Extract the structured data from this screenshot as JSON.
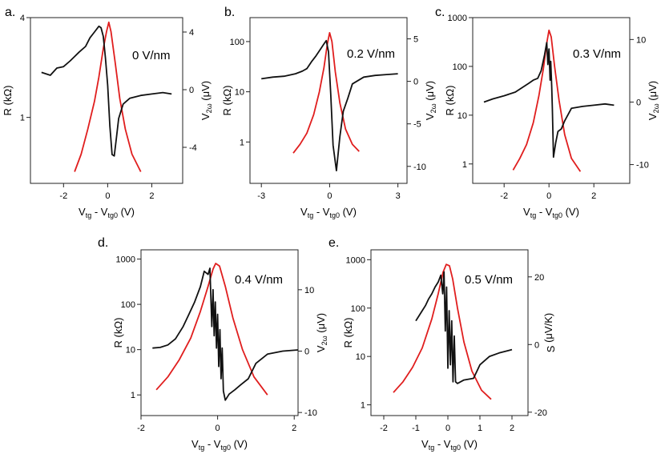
{
  "chart_data": [
    {
      "type": "line",
      "panel_label": "a.",
      "annotation": "0 V/nm",
      "xlabel": {
        "main": "V",
        "sub1": "tg",
        "mid": " - V",
        "sub2": "tg0",
        "unit": " (V)"
      },
      "ylabel_left": {
        "main": "R (kΩ)"
      },
      "ylabel_right": {
        "main": "V",
        "sub": "2ω",
        "unit": " (μV)"
      },
      "left_axis": {
        "scale": "log",
        "range": [
          0.4,
          4
        ],
        "ticks": [
          {
            "v": 1,
            "label": "1"
          },
          {
            "v": 4,
            "label": "4"
          }
        ]
      },
      "right_axis": {
        "scale": "linear",
        "range": [
          -6.5,
          5
        ],
        "ticks": [
          {
            "v": 4,
            "label": "4"
          },
          {
            "v": 0,
            "label": "0"
          },
          {
            "v": -4,
            "label": "-4"
          }
        ]
      },
      "x_axis": {
        "range": [
          -3.5,
          3.4
        ],
        "ticks": [
          {
            "v": -2,
            "label": "-2"
          },
          {
            "v": 0,
            "label": "0"
          },
          {
            "v": 2,
            "label": "2"
          }
        ]
      },
      "series": [
        {
          "name": "R",
          "color": "#e01e1e",
          "axis": "left",
          "x": [
            -1.5,
            -1.2,
            -0.9,
            -0.6,
            -0.4,
            -0.2,
            -0.05,
            0.05,
            0.15,
            0.35,
            0.55,
            0.8,
            1.1,
            1.5
          ],
          "values": [
            0.47,
            0.6,
            0.85,
            1.25,
            1.75,
            2.6,
            3.3,
            3.75,
            3.3,
            2.1,
            1.3,
            0.85,
            0.6,
            0.47
          ]
        },
        {
          "name": "V2w",
          "color": "#111111",
          "axis": "right",
          "x": [
            -3.0,
            -2.6,
            -2.3,
            -2.0,
            -1.7,
            -1.5,
            -1.3,
            -1.0,
            -0.8,
            -0.6,
            -0.4,
            -0.3,
            -0.2,
            -0.1,
            0.0,
            0.1,
            0.2,
            0.3,
            0.4,
            0.5,
            0.7,
            1.0,
            1.5,
            2.0,
            2.5,
            2.9
          ],
          "values": [
            1.2,
            1.0,
            1.5,
            1.6,
            2.0,
            2.3,
            2.6,
            3.0,
            3.6,
            4.0,
            4.4,
            4.3,
            3.7,
            2.2,
            0.3,
            -2.5,
            -4.5,
            -4.6,
            -3.3,
            -2.0,
            -1.0,
            -0.6,
            -0.4,
            -0.3,
            -0.2,
            -0.3
          ]
        }
      ]
    },
    {
      "type": "line",
      "panel_label": "b.",
      "annotation": "0.2 V/nm",
      "xlabel": {
        "main": "V",
        "sub1": "tg",
        "mid": " - V",
        "sub2": "tg0",
        "unit": " (V)"
      },
      "ylabel_left": {
        "main": "R (kΩ)"
      },
      "ylabel_right": {
        "main": "V",
        "sub": "2ω",
        "unit": " (μV)"
      },
      "left_axis": {
        "scale": "log",
        "range": [
          0.15,
          300
        ],
        "ticks": [
          {
            "v": 1,
            "label": "1"
          },
          {
            "v": 10,
            "label": "10"
          },
          {
            "v": 100,
            "label": "100"
          }
        ]
      },
      "right_axis": {
        "scale": "linear",
        "range": [
          -12,
          7.5
        ],
        "ticks": [
          {
            "v": 5,
            "label": "5"
          },
          {
            "v": 0,
            "label": "0"
          },
          {
            "v": -5,
            "label": "-5"
          },
          {
            "v": -10,
            "label": "-10"
          }
        ]
      },
      "x_axis": {
        "range": [
          -3.5,
          3.4
        ],
        "ticks": [
          {
            "v": -3,
            "label": "-3"
          },
          {
            "v": 0,
            "label": "0"
          },
          {
            "v": 3,
            "label": "3"
          }
        ]
      },
      "series": [
        {
          "name": "R",
          "color": "#e01e1e",
          "axis": "left",
          "x": [
            -1.6,
            -1.3,
            -1.0,
            -0.7,
            -0.45,
            -0.25,
            -0.1,
            0.0,
            0.1,
            0.25,
            0.45,
            0.7,
            1.0,
            1.3
          ],
          "values": [
            0.6,
            0.9,
            1.5,
            3.5,
            10,
            30,
            90,
            150,
            100,
            25,
            6,
            1.8,
            0.9,
            0.65
          ]
        },
        {
          "name": "V2w",
          "color": "#111111",
          "axis": "right",
          "x": [
            -3.0,
            -2.5,
            -2.0,
            -1.5,
            -1.2,
            -1.0,
            -0.8,
            -0.6,
            -0.4,
            -0.25,
            -0.15,
            -0.05,
            0.05,
            0.15,
            0.3,
            0.45,
            0.6,
            0.8,
            1.0,
            1.5,
            2.0,
            2.5,
            3.0
          ],
          "values": [
            0.3,
            0.5,
            0.6,
            0.9,
            1.2,
            1.5,
            2.3,
            3.0,
            3.8,
            4.4,
            4.8,
            3.5,
            -1.5,
            -7.5,
            -10.5,
            -6.5,
            -3.5,
            -2.0,
            -0.3,
            0.5,
            0.7,
            0.8,
            0.9
          ]
        }
      ]
    },
    {
      "type": "line",
      "panel_label": "c.",
      "annotation": "0.3 V/nm",
      "xlabel": {
        "main": "V",
        "sub1": "tg",
        "mid": " - V",
        "sub2": "tg0",
        "unit": " (V)"
      },
      "ylabel_left": {
        "main": "R (kΩ)"
      },
      "ylabel_right": {
        "main": "V",
        "sub": "2ω",
        "unit": " (μV)"
      },
      "left_axis": {
        "scale": "log",
        "range": [
          0.4,
          1000
        ],
        "ticks": [
          {
            "v": 1,
            "label": "1"
          },
          {
            "v": 10,
            "label": "10"
          },
          {
            "v": 100,
            "label": "100"
          },
          {
            "v": 1000,
            "label": "1000"
          }
        ]
      },
      "right_axis": {
        "scale": "linear",
        "range": [
          -13,
          13.5
        ],
        "ticks": [
          {
            "v": 10,
            "label": "10"
          },
          {
            "v": 0,
            "label": "0"
          },
          {
            "v": -10,
            "label": "-10"
          }
        ]
      },
      "x_axis": {
        "range": [
          -3.4,
          3.6
        ],
        "ticks": [
          {
            "v": -2,
            "label": "-2"
          },
          {
            "v": 0,
            "label": "0"
          },
          {
            "v": 2,
            "label": "2"
          }
        ]
      },
      "series": [
        {
          "name": "R",
          "color": "#e01e1e",
          "axis": "left",
          "x": [
            -1.6,
            -1.3,
            -1.0,
            -0.7,
            -0.45,
            -0.25,
            -0.1,
            0.0,
            0.1,
            0.25,
            0.45,
            0.7,
            1.0,
            1.4
          ],
          "values": [
            0.75,
            1.3,
            2.5,
            7,
            25,
            90,
            300,
            550,
            400,
            100,
            20,
            4,
            1.3,
            0.7
          ]
        },
        {
          "name": "V2w",
          "color": "#111111",
          "axis": "right",
          "x": [
            -2.9,
            -2.5,
            -2.0,
            -1.5,
            -1.2,
            -0.9,
            -0.7,
            -0.5,
            -0.35,
            -0.2,
            -0.1,
            -0.05,
            0.0,
            0.05,
            0.08,
            0.12,
            0.15,
            0.2,
            0.3,
            0.4,
            0.55,
            0.7,
            1.0,
            1.5,
            2.0,
            2.5,
            2.9
          ],
          "values": [
            0.0,
            0.5,
            1.0,
            1.6,
            2.3,
            3.0,
            3.5,
            3.8,
            5.0,
            7.5,
            9.5,
            6.0,
            8.5,
            3.5,
            6.5,
            2.5,
            -1.0,
            -8.8,
            -6.5,
            -4.7,
            -4.3,
            -3.0,
            -1.0,
            -0.7,
            -0.5,
            -0.3,
            -0.5
          ]
        }
      ]
    },
    {
      "type": "line",
      "panel_label": "d.",
      "annotation": "0.4 V/nm",
      "xlabel": {
        "main": "V",
        "sub1": "tg",
        "mid": " - V",
        "sub2": "tg0",
        "unit": " (V)"
      },
      "ylabel_left": {
        "main": "R (kΩ)"
      },
      "ylabel_right": {
        "main": "V",
        "sub": "2ω",
        "unit": " (μV)"
      },
      "left_axis": {
        "scale": "log",
        "range": [
          0.35,
          1600
        ],
        "ticks": [
          {
            "v": 1,
            "label": "1"
          },
          {
            "v": 10,
            "label": "10"
          },
          {
            "v": 100,
            "label": "100"
          },
          {
            "v": 1000,
            "label": "1000"
          }
        ]
      },
      "right_axis": {
        "scale": "linear",
        "range": [
          -10.5,
          16.5
        ],
        "ticks": [
          {
            "v": 10,
            "label": "10"
          },
          {
            "v": 0,
            "label": "0"
          },
          {
            "v": -10,
            "label": "-10"
          }
        ]
      },
      "x_axis": {
        "range": [
          -2.0,
          2.1
        ],
        "ticks": [
          {
            "v": -2,
            "label": "-2"
          },
          {
            "v": 0,
            "label": "0"
          },
          {
            "v": 2,
            "label": "2"
          }
        ]
      },
      "series": [
        {
          "name": "R",
          "color": "#e01e1e",
          "axis": "left",
          "x": [
            -1.6,
            -1.3,
            -1.0,
            -0.7,
            -0.45,
            -0.25,
            -0.12,
            -0.05,
            0.05,
            0.2,
            0.4,
            0.65,
            0.95,
            1.3
          ],
          "values": [
            1.3,
            2.5,
            6,
            18,
            70,
            250,
            600,
            800,
            700,
            250,
            50,
            10,
            2.5,
            1.0
          ]
        },
        {
          "name": "V2w",
          "color": "#111111",
          "axis": "right",
          "x": [
            -1.7,
            -1.5,
            -1.3,
            -1.1,
            -0.9,
            -0.75,
            -0.6,
            -0.45,
            -0.35,
            -0.25,
            -0.2,
            -0.15,
            -0.12,
            -0.09,
            -0.06,
            -0.03,
            0.0,
            0.03,
            0.06,
            0.09,
            0.12,
            0.15,
            0.2,
            0.3,
            0.45,
            0.6,
            0.8,
            1.0,
            1.3,
            1.7,
            2.1
          ],
          "values": [
            0.5,
            0.6,
            1.0,
            2.0,
            4.0,
            6.0,
            8.0,
            10.5,
            13.0,
            12.5,
            13.5,
            4.0,
            10.0,
            2.5,
            8.0,
            0.5,
            6.0,
            -2.5,
            3.5,
            -4.5,
            0.5,
            -6.5,
            -8.0,
            -7.0,
            -6.3,
            -5.5,
            -4.5,
            -2.0,
            -0.5,
            0.0,
            0.2
          ]
        }
      ]
    },
    {
      "type": "line",
      "panel_label": "e.",
      "annotation": "0.5 V/nm",
      "xlabel": {
        "main": "V",
        "sub1": "tg",
        "mid": " - V",
        "sub2": "tg0",
        "unit": " (V)"
      },
      "ylabel_left": {
        "main": "R (kΩ)"
      },
      "ylabel_right": {
        "main": "S",
        "sub": "",
        "unit": " (μV/K)"
      },
      "left_axis": {
        "scale": "log",
        "range": [
          0.6,
          1600
        ],
        "ticks": [
          {
            "v": 1,
            "label": "1"
          },
          {
            "v": 10,
            "label": "10"
          },
          {
            "v": 100,
            "label": "100"
          },
          {
            "v": 1000,
            "label": "1000"
          }
        ]
      },
      "right_axis": {
        "scale": "linear",
        "range": [
          -21,
          28
        ],
        "ticks": [
          {
            "v": 20,
            "label": "20"
          },
          {
            "v": 0,
            "label": "0"
          },
          {
            "v": -20,
            "label": "-20"
          }
        ]
      },
      "x_axis": {
        "range": [
          -2.4,
          2.5
        ],
        "ticks": [
          {
            "v": -2,
            "label": "-2"
          },
          {
            "v": -1,
            "label": "-1"
          },
          {
            "v": 0,
            "label": "0"
          },
          {
            "v": 1,
            "label": "1"
          },
          {
            "v": 2,
            "label": "2"
          }
        ]
      },
      "series": [
        {
          "name": "R",
          "color": "#e01e1e",
          "axis": "left",
          "x": [
            -1.7,
            -1.4,
            -1.1,
            -0.8,
            -0.5,
            -0.3,
            -0.15,
            -0.05,
            0.05,
            0.15,
            0.3,
            0.5,
            0.75,
            1.05,
            1.35
          ],
          "values": [
            1.8,
            3,
            6,
            15,
            60,
            200,
            550,
            800,
            750,
            400,
            100,
            20,
            5,
            2,
            1.3
          ]
        },
        {
          "name": "S",
          "color": "#111111",
          "axis": "right",
          "x": [
            -1.0,
            -0.9,
            -0.8,
            -0.7,
            -0.6,
            -0.5,
            -0.4,
            -0.3,
            -0.22,
            -0.16,
            -0.12,
            -0.08,
            -0.04,
            0.0,
            0.04,
            0.08,
            0.12,
            0.16,
            0.2,
            0.24,
            0.3,
            0.5,
            0.8,
            1.0,
            1.3,
            1.6,
            2.0
          ],
          "values": [
            7.0,
            8.5,
            10.0,
            11.5,
            13.5,
            15.0,
            17.0,
            18.5,
            20.5,
            15.0,
            21.5,
            4.0,
            17.0,
            -7.0,
            10.0,
            -6.0,
            7.0,
            -11.0,
            2.5,
            -11.0,
            -11.5,
            -10.5,
            -10.0,
            -6.0,
            -3.5,
            -2.5,
            -1.5
          ]
        }
      ]
    }
  ]
}
